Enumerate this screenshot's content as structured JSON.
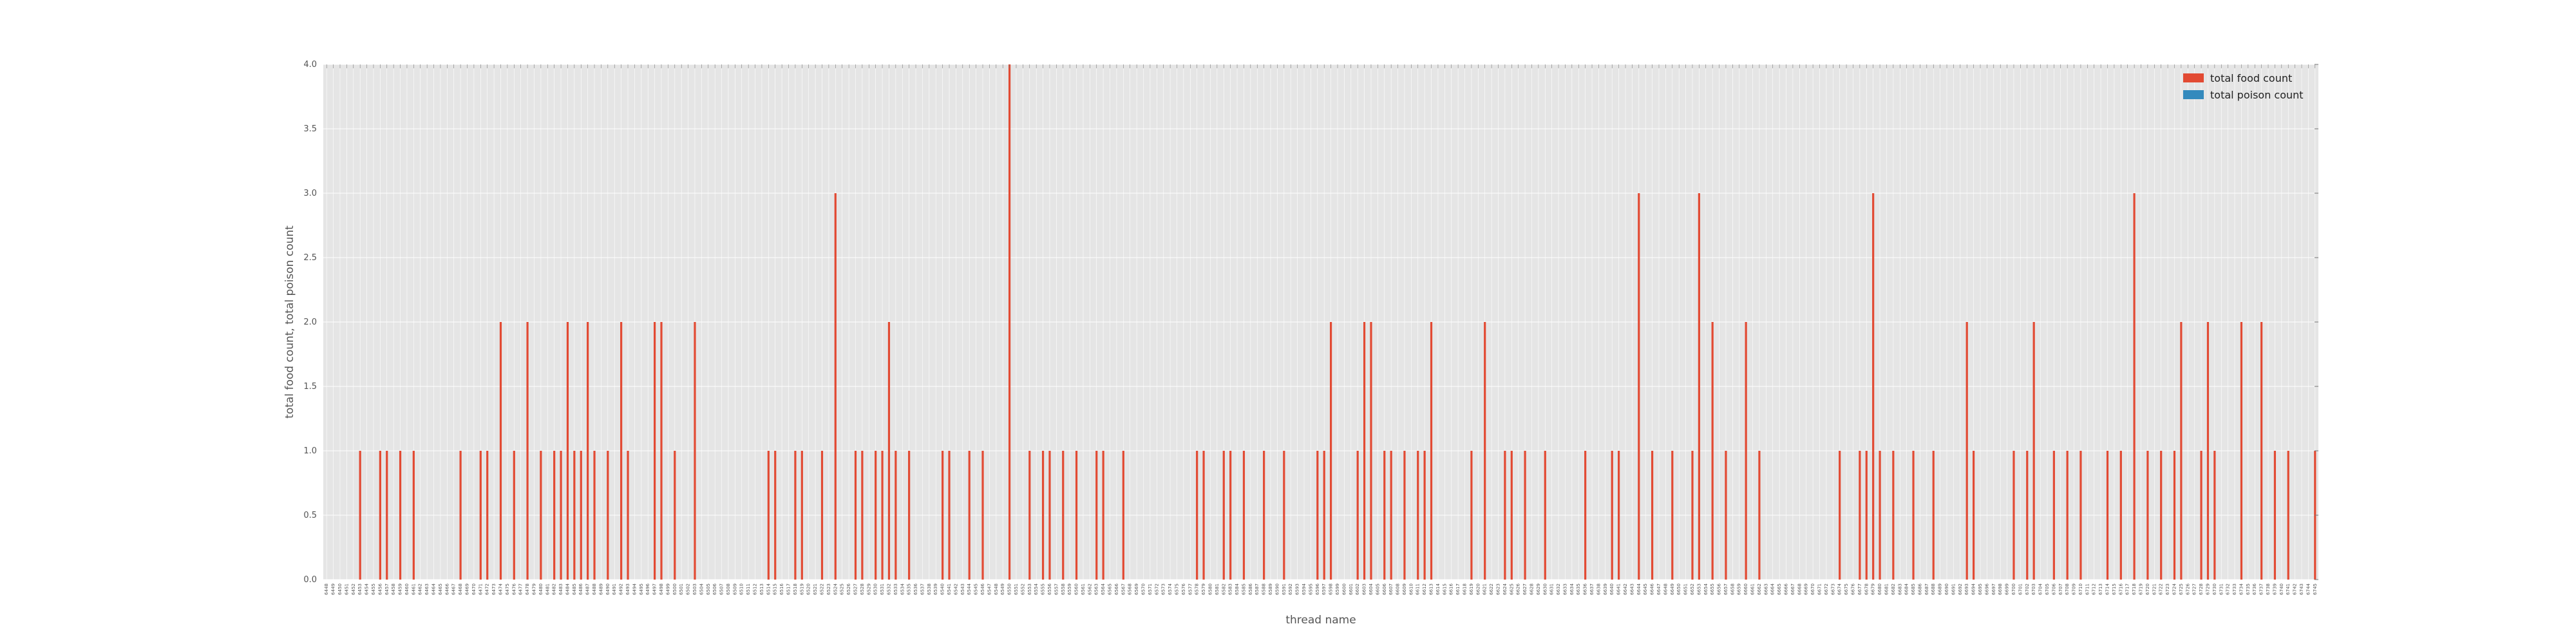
{
  "chart_data": {
    "type": "bar",
    "xlabel": "thread name",
    "ylabel": "total food count, total poison count",
    "ylim": [
      0,
      4
    ],
    "yticks": [
      "0.0",
      "0.5",
      "1.0",
      "1.5",
      "2.0",
      "2.5",
      "3.0",
      "3.5",
      "4.0"
    ],
    "grid": true,
    "legend_position": "top-right",
    "colors": {
      "total food count": "#E24A33",
      "total poison count": "#348ABD",
      "background": "#E5E5E5",
      "grid": "#FFFFFF"
    },
    "series": [
      {
        "name": "total food count",
        "values": [
          0,
          0,
          0,
          0,
          0,
          1,
          0,
          0,
          1,
          1,
          0,
          1,
          0,
          1,
          0,
          0,
          0,
          0,
          0,
          0,
          1,
          0,
          0,
          1,
          1,
          0,
          2,
          0,
          1,
          0,
          2,
          0,
          1,
          0,
          1,
          1,
          2,
          1,
          1,
          2,
          1,
          0,
          1,
          0,
          2,
          1,
          0,
          0,
          0,
          2,
          2,
          0,
          1,
          0,
          0,
          2,
          0,
          0,
          0,
          0,
          0,
          0,
          0,
          0,
          0,
          0,
          1,
          1,
          0,
          0,
          1,
          1,
          0,
          0,
          1,
          0,
          3,
          0,
          0,
          1,
          1,
          0,
          1,
          1,
          2,
          1,
          0,
          1,
          0,
          0,
          0,
          0,
          1,
          1,
          0,
          0,
          1,
          0,
          1,
          0,
          0,
          0,
          4,
          0,
          0,
          1,
          0,
          1,
          1,
          0,
          1,
          0,
          1,
          0,
          0,
          1,
          1,
          0,
          0,
          1,
          0,
          0,
          0,
          0,
          0,
          0,
          0,
          0,
          0,
          0,
          1,
          1,
          0,
          0,
          1,
          1,
          0,
          1,
          0,
          0,
          1,
          0,
          0,
          1,
          0,
          0,
          0,
          0,
          1,
          1,
          2,
          0,
          0,
          0,
          1,
          2,
          2,
          0,
          1,
          1,
          0,
          1,
          0,
          1,
          1,
          2,
          0,
          0,
          0,
          0,
          0,
          1,
          0,
          2,
          0,
          0,
          1,
          1,
          0,
          1,
          0,
          0,
          1,
          0,
          0,
          0,
          0,
          0,
          1,
          0,
          0,
          0,
          1,
          1,
          0,
          0,
          3,
          0,
          1,
          0,
          0,
          1,
          0,
          0,
          1,
          3,
          0,
          2,
          0,
          1,
          0,
          0,
          2,
          0,
          1,
          0,
          0,
          0,
          0,
          0,
          0,
          0,
          0,
          0,
          0,
          0,
          1,
          0,
          0,
          1,
          1,
          3,
          1,
          0,
          1,
          0,
          0,
          1,
          0,
          0,
          1,
          0,
          0,
          0,
          0,
          2,
          1,
          0,
          0,
          0,
          0,
          0,
          1,
          0,
          1,
          2,
          0,
          0,
          1,
          0,
          1,
          0,
          1,
          0,
          0,
          0,
          1,
          0,
          1,
          0,
          3,
          0,
          1,
          0,
          1,
          0,
          1,
          2,
          0,
          0,
          1,
          2,
          1,
          0,
          0,
          0,
          2,
          0,
          0,
          2,
          0,
          1,
          0,
          1,
          0,
          0,
          0,
          1
        ],
        "values_note": ""
      },
      {
        "name": "total poison count",
        "values": []
      }
    ],
    "xtick_labels": [
      "6448",
      "6449",
      "6450",
      "6451",
      "6452",
      "6453",
      "6454",
      "6455",
      "6456",
      "6457",
      "6458",
      "6459",
      "6460",
      "6461",
      "6462",
      "6463",
      "6464",
      "6465",
      "6466",
      "6467",
      "6468",
      "6469",
      "6470",
      "6471",
      "6472",
      "6473",
      "6474",
      "6475",
      "6476",
      "6477",
      "6478",
      "6479",
      "6480",
      "6481",
      "6482",
      "6483",
      "6484",
      "6485",
      "6486",
      "6487",
      "6488",
      "6489",
      "6490",
      "6491",
      "6492",
      "6493",
      "6494",
      "6495",
      "6496",
      "6497",
      "6498",
      "6499",
      "6500",
      "6501",
      "6502",
      "6503",
      "6504",
      "6505",
      "6506",
      "6507",
      "6508",
      "6509",
      "6510",
      "6511",
      "6512",
      "6513",
      "6514",
      "6515",
      "6516",
      "6517",
      "6518",
      "6519",
      "6520",
      "6521",
      "6522",
      "6523",
      "6524",
      "6525",
      "6526",
      "6527",
      "6528",
      "6529",
      "6530",
      "6531",
      "6532",
      "6533",
      "6534",
      "6535",
      "6536",
      "6537",
      "6538",
      "6539",
      "6540",
      "6541",
      "6542",
      "6543",
      "6544",
      "6545",
      "6546",
      "6547",
      "6548",
      "6549",
      "6550",
      "6551",
      "6552",
      "6553",
      "6554",
      "6555",
      "6556",
      "6557",
      "6558",
      "6559",
      "6560",
      "6561",
      "6562",
      "6563",
      "6564",
      "6565",
      "6566",
      "6567",
      "6568",
      "6569",
      "6570",
      "6571",
      "6572",
      "6573",
      "6574",
      "6575",
      "6576",
      "6577",
      "6578",
      "6579",
      "6580",
      "6581",
      "6582",
      "6583",
      "6584",
      "6585",
      "6586",
      "6587",
      "6588",
      "6589",
      "6590",
      "6591",
      "6592",
      "6593",
      "6594",
      "6595",
      "6596",
      "6597",
      "6598",
      "6599",
      "6600",
      "6601",
      "6602",
      "6603",
      "6604",
      "6605",
      "6606",
      "6607",
      "6608",
      "6609",
      "6610",
      "6611",
      "6612",
      "6613",
      "6614",
      "6615",
      "6616",
      "6617",
      "6618",
      "6619",
      "6620",
      "6621",
      "6622",
      "6623",
      "6624",
      "6625",
      "6626",
      "6627",
      "6628",
      "6629",
      "6630",
      "6631",
      "6632",
      "6633",
      "6634",
      "6635",
      "6636",
      "6637",
      "6638",
      "6639",
      "6640",
      "6641",
      "6642",
      "6643",
      "6644",
      "6645",
      "6646",
      "6647",
      "6648",
      "6649",
      "6650",
      "6651",
      "6652",
      "6653",
      "6654",
      "6655",
      "6656",
      "6657",
      "6658",
      "6659",
      "6660",
      "6661",
      "6662",
      "6663",
      "6664",
      "6665",
      "6666",
      "6667",
      "6668",
      "6669",
      "6670",
      "6671",
      "6672",
      "6673",
      "6674",
      "6675",
      "6676",
      "6677",
      "6678",
      "6679",
      "6680",
      "6681",
      "6682",
      "6683",
      "6684",
      "6685",
      "6686",
      "6687",
      "6688",
      "6689",
      "6690",
      "6691",
      "6692",
      "6693",
      "6694",
      "6695",
      "6696",
      "6697",
      "6698",
      "6699",
      "6700",
      "6701",
      "6702",
      "6703",
      "6704",
      "6705",
      "6706",
      "6707",
      "6708",
      "6709",
      "6710",
      "6711",
      "6712",
      "6713",
      "6714",
      "6715",
      "6716",
      "6717",
      "6718",
      "6719",
      "6720",
      "6721",
      "6722",
      "6723",
      "6724",
      "6725",
      "6726",
      "6727",
      "6728",
      "6729",
      "6730",
      "6731",
      "6732",
      "6733",
      "6734",
      "6735",
      "6736",
      "6737",
      "6738",
      "6739",
      "6740",
      "6741",
      "6742",
      "6743",
      "6744",
      "6745"
    ]
  }
}
